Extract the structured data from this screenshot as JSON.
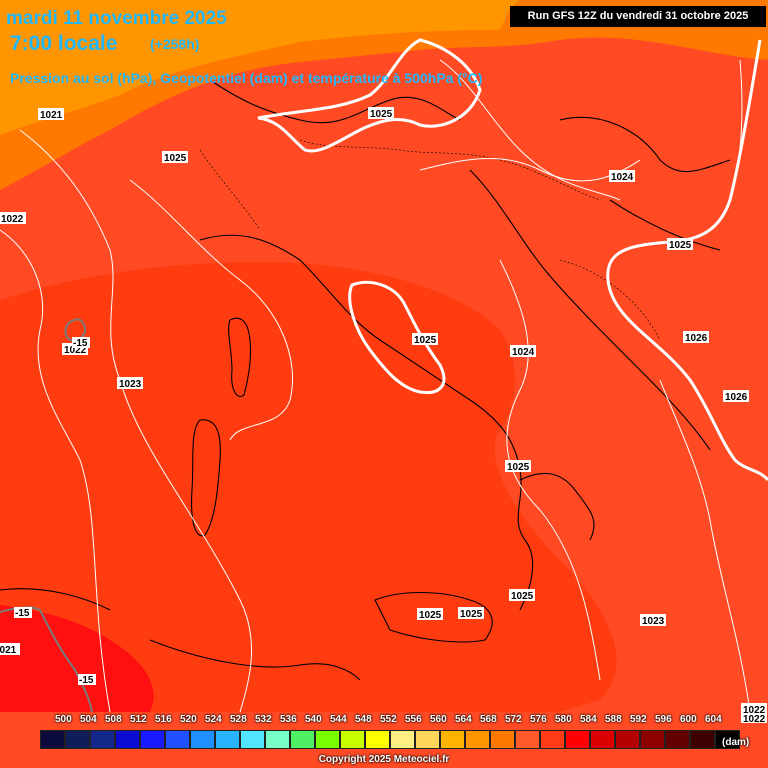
{
  "header": {
    "date": "mardi 11 novembre 2025",
    "time": "7:00 locale",
    "lead": "(+258h)",
    "subtitle": "Pression au sol (hPa), Geopotentiel (dam) et température à 500hPa (°C)",
    "run": "Run GFS 12Z du vendredi 31 octobre 2025"
  },
  "pressure_labels": [
    "1021",
    "1025",
    "1025",
    "1024",
    "1022",
    "1025",
    "1025",
    "1022",
    "1024",
    "1026",
    "1023",
    "1026",
    "1025",
    "1025",
    "1025",
    "1025",
    "1023",
    "1021",
    "1022",
    "1022"
  ],
  "temp_labels": [
    "-15",
    "-15",
    "-15"
  ],
  "legend": {
    "unit": "(dam)",
    "ticks": [
      "500",
      "504",
      "508",
      "512",
      "516",
      "520",
      "524",
      "528",
      "532",
      "536",
      "540",
      "544",
      "548",
      "552",
      "556",
      "560",
      "564",
      "568",
      "572",
      "576",
      "580",
      "584",
      "588",
      "592",
      "596",
      "600",
      "604"
    ],
    "colors": [
      "#0a0a3c",
      "#0f1e5a",
      "#14288c",
      "#0a0ad2",
      "#1a1aff",
      "#2050ff",
      "#1e90ff",
      "#28b4ff",
      "#50e6ff",
      "#78ffc8",
      "#50f064",
      "#78ff00",
      "#c8ff00",
      "#ffff00",
      "#ffee82",
      "#ffd55a",
      "#ffb400",
      "#ff9600",
      "#ff7800",
      "#ff5a28",
      "#ff3c14",
      "#ff0000",
      "#dc0000",
      "#b40000",
      "#8c0000",
      "#640000",
      "#3c0000",
      "#000000"
    ]
  },
  "copyright": "Copyright 2025 Meteociel.fr"
}
